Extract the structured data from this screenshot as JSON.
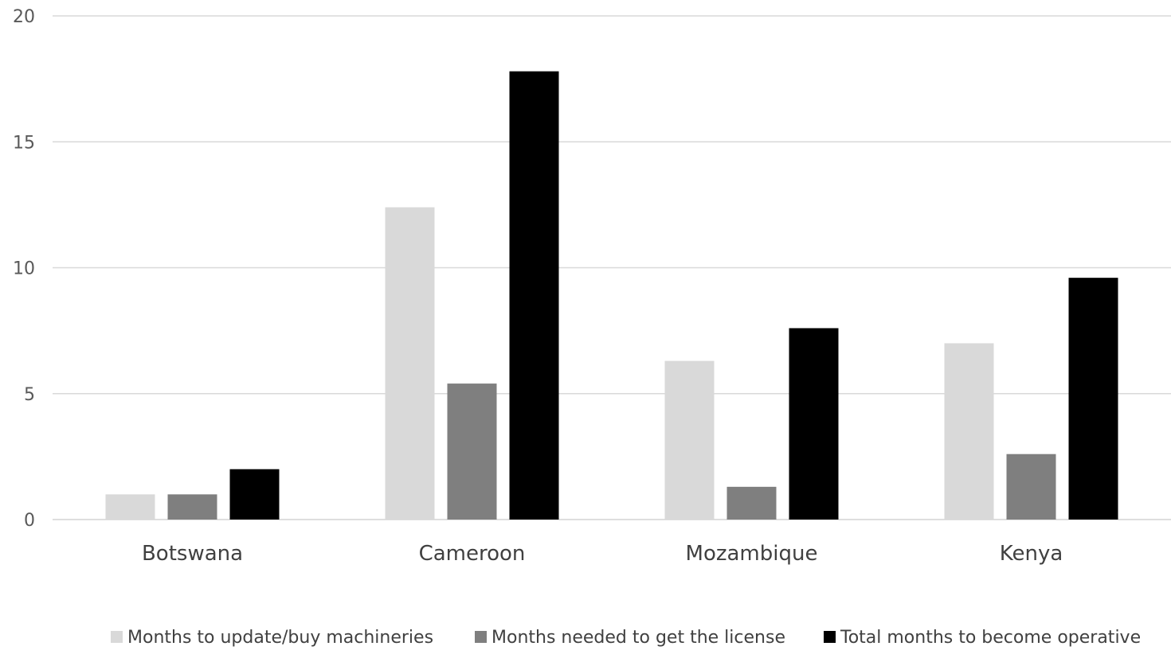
{
  "chart_data": {
    "type": "bar",
    "title": "",
    "xlabel": "",
    "ylabel": "",
    "categories": [
      "Botswana",
      "Cameroon",
      "Mozambique",
      "Kenya"
    ],
    "series": [
      {
        "name": "Months to update/buy machineries",
        "color": "#d9d9d9",
        "values": [
          1,
          12.4,
          6.3,
          7
        ]
      },
      {
        "name": "Months needed to get the license",
        "color": "#7f7f7f",
        "values": [
          1,
          5.4,
          1.3,
          2.6
        ]
      },
      {
        "name": "Total months to become operative",
        "color": "#000000",
        "values": [
          2,
          17.8,
          7.6,
          9.6
        ]
      }
    ],
    "ylim": [
      0,
      20
    ],
    "yticks": [
      0,
      5,
      10,
      15,
      20
    ],
    "grid": true,
    "legend_position": "bottom"
  }
}
